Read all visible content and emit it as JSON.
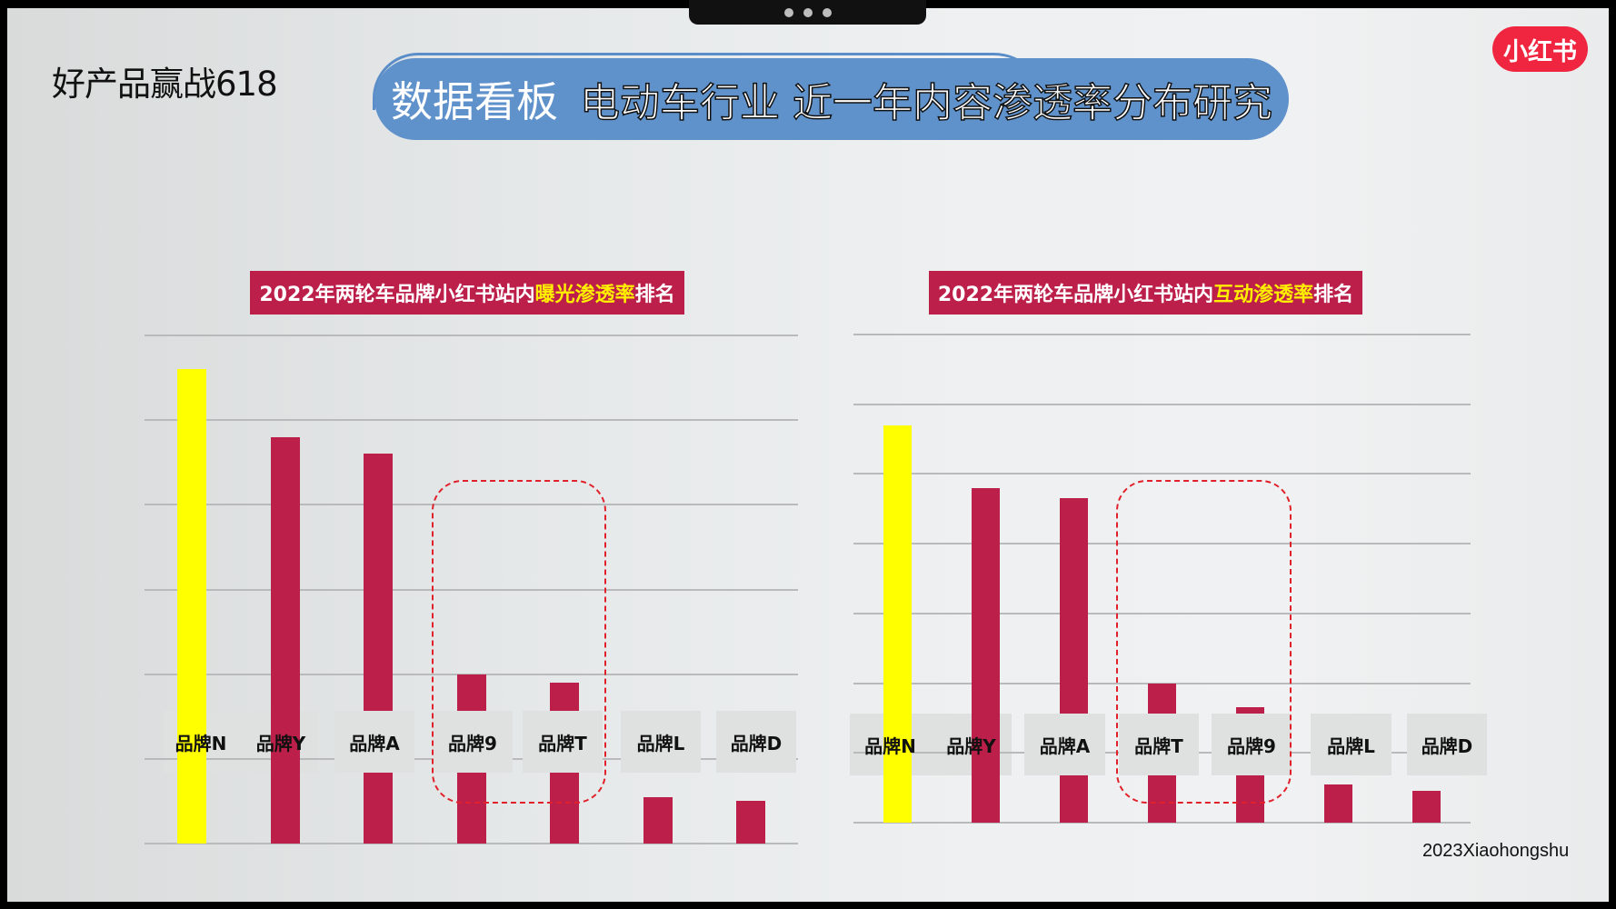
{
  "header": {
    "subtitle": "好产品赢战618",
    "banner_prefix": "数据看板",
    "banner_title": "电动车行业 近一年内容渗透率分布研究",
    "logo": "小红书"
  },
  "footer": {
    "text": "2023Xiaohongshu"
  },
  "colors": {
    "highlight_bar": "#ffff00",
    "bar": "#bc1f4a",
    "title_bg": "#bc1f4a",
    "title_highlight": "#ffee00",
    "banner": "#5f91cb",
    "dash": "#e0202a",
    "logo": "#f0253f"
  },
  "charts": [
    {
      "title_pre": "2022年两轮车品牌小红书站内",
      "title_hl": "曝光渗透率",
      "title_post": "排名",
      "categories": [
        "品牌N",
        "品牌Y",
        "品牌A",
        "品牌9",
        "品牌T",
        "品牌L",
        "品牌D"
      ],
      "highlighted_group": [
        "品牌9",
        "品牌T"
      ]
    },
    {
      "title_pre": "2022年两轮车品牌小红书站内",
      "title_hl": "互动渗透率",
      "title_post": "排名",
      "categories": [
        "品牌N",
        "品牌Y",
        "品牌A",
        "品牌T",
        "品牌9",
        "品牌L",
        "品牌D"
      ],
      "highlighted_group": [
        "品牌T",
        "品牌9"
      ]
    }
  ],
  "chart_data": [
    {
      "type": "bar",
      "title": "2022年两轮车品牌小红书站内曝光渗透率排名",
      "categories": [
        "品牌N",
        "品牌Y",
        "品牌A",
        "品牌9",
        "品牌T",
        "品牌L",
        "品牌D"
      ],
      "values": [
        5.6,
        4.8,
        4.6,
        2.0,
        1.9,
        0.55,
        0.5
      ],
      "xlabel": "",
      "ylabel": "",
      "ylim": [
        0,
        6
      ],
      "grid": true,
      "gridlines": 6,
      "highlight": {
        "bar": "品牌N",
        "color": "#ffff00"
      },
      "annotations": [
        "dashed box around 品牌9 and 品牌T"
      ]
    },
    {
      "type": "bar",
      "title": "2022年两轮车品牌小红书站内互动渗透率排名",
      "categories": [
        "品牌N",
        "品牌Y",
        "品牌A",
        "品牌T",
        "品牌9",
        "品牌L",
        "品牌D"
      ],
      "values": [
        5.7,
        4.8,
        4.65,
        2.0,
        1.65,
        0.55,
        0.45
      ],
      "xlabel": "",
      "ylabel": "",
      "ylim": [
        0,
        7
      ],
      "grid": true,
      "gridlines": 7,
      "highlight": {
        "bar": "品牌N",
        "color": "#ffff00"
      },
      "annotations": [
        "dashed box around 品牌T and 品牌9"
      ]
    }
  ]
}
